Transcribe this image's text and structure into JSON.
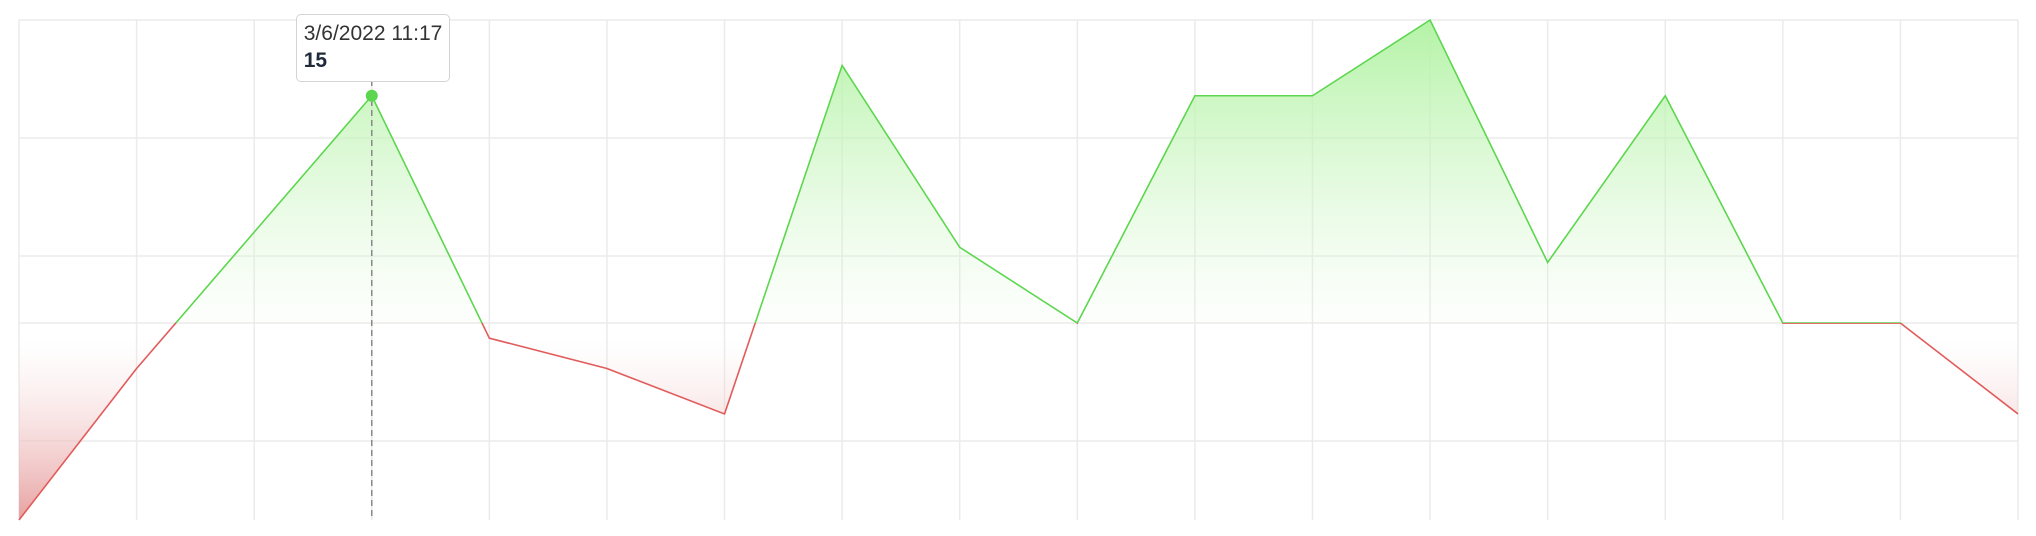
{
  "chart_data": {
    "type": "area",
    "x": [
      0,
      1,
      2,
      3,
      4,
      5,
      6,
      7,
      8,
      9,
      10,
      11,
      12,
      13,
      14,
      15,
      16,
      17
    ],
    "values": [
      -13,
      -3,
      6,
      15,
      -1,
      -3,
      -6,
      17,
      5,
      0,
      15,
      15,
      20,
      4,
      15,
      0,
      0,
      -6
    ],
    "ylim": [
      -13,
      20
    ],
    "baseline": 0,
    "grid": true,
    "colors": {
      "positive": "#5dd64f",
      "negative": "#e25b5b",
      "grid": "#ebebeb"
    }
  },
  "tooltip": {
    "index": 3,
    "time": "3/6/2022 11:17",
    "value": "15"
  }
}
